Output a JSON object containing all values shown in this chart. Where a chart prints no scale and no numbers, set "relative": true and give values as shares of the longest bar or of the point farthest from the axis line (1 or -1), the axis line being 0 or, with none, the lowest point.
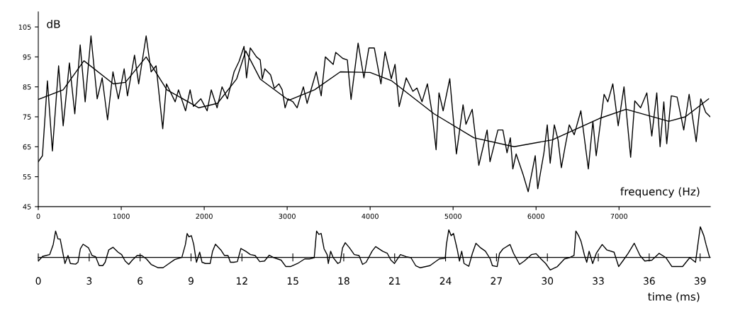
{
  "chart_data": [
    {
      "type": "line",
      "xlabel": "frequency (Hz)",
      "ylabel": "dB",
      "xlim": [
        0,
        8100
      ],
      "xticks": [
        0,
        1000,
        2000,
        3000,
        4000,
        5000,
        6000,
        7000
      ],
      "ylim": [
        45,
        110
      ],
      "yticks": [
        45,
        55,
        65,
        75,
        85,
        95,
        105
      ],
      "series": [
        {
          "color": "#000000",
          "x": [
            0,
            50,
            110,
            170,
            245,
            300,
            375,
            440,
            505,
            565,
            635,
            710,
            770,
            835,
            900,
            965,
            1035,
            1075,
            1160,
            1210,
            1300,
            1360,
            1420,
            1500,
            1545,
            1650,
            1690,
            1775,
            1830,
            1870,
            1960,
            2035,
            2085,
            2155,
            2215,
            2280,
            2360,
            2420,
            2480,
            2510,
            2555,
            2630,
            2675,
            2700,
            2730,
            2800,
            2845,
            2900,
            2940,
            2975,
            3010,
            3070,
            3120,
            3195,
            3240,
            3350,
            3410,
            3460,
            3555,
            3585,
            3670,
            3725,
            3770,
            3855,
            3925,
            3985,
            4050,
            4130,
            4180,
            4255,
            4300,
            4350,
            4435,
            4515,
            4565,
            4625,
            4690,
            4745,
            4795,
            4830,
            4880,
            4960,
            5040,
            5120,
            5155,
            5230,
            5310,
            5410,
            5445,
            5540,
            5600,
            5650,
            5690,
            5720,
            5760,
            5845,
            5905,
            5990,
            6020,
            6095,
            6135,
            6170,
            6220,
            6265,
            6305,
            6350,
            6400,
            6460,
            6540,
            6630,
            6685,
            6725,
            6820,
            6865,
            6925,
            6990,
            7060,
            7140,
            7190,
            7260,
            7335,
            7395,
            7455,
            7495,
            7540,
            7575,
            7630,
            7700,
            7780,
            7845,
            7930,
            7985,
            8045,
            8100
          ],
          "values": [
            60,
            62,
            87,
            63.6,
            92,
            72,
            93,
            76,
            99,
            80,
            102,
            81,
            88,
            74,
            90,
            81,
            91,
            82,
            95.6,
            86,
            102,
            90,
            92,
            71,
            86,
            80,
            84,
            77,
            84,
            78.5,
            81,
            77,
            84,
            78,
            85,
            81,
            90,
            93.5,
            98.5,
            88,
            98,
            95,
            94,
            87.6,
            91,
            89,
            84.5,
            86,
            84,
            78,
            81,
            80,
            78,
            85,
            79.5,
            90,
            82,
            95,
            92.5,
            96.5,
            94.5,
            94,
            80.8,
            99.6,
            88,
            98,
            98,
            86,
            96.7,
            87.7,
            92.5,
            78.4,
            88,
            83.5,
            84.6,
            80,
            86,
            76.6,
            64,
            83,
            77,
            87.7,
            62.6,
            79,
            72.5,
            77.5,
            58.8,
            70.6,
            60,
            70.6,
            70.6,
            63,
            68,
            57.6,
            62.6,
            55.6,
            50,
            62,
            51,
            63,
            72.3,
            59.5,
            72.3,
            67.3,
            58,
            65,
            72.3,
            69,
            77,
            57.6,
            73.5,
            62,
            82.5,
            80,
            86,
            72,
            85,
            61.5,
            80.3,
            78,
            83,
            68.6,
            83,
            65,
            80,
            66,
            82,
            81.6,
            70.6,
            82.5,
            66.7,
            81,
            76.5,
            75
          ]
        },
        {
          "color": "#000000",
          "x": [
            0,
            300,
            550,
            905,
            1050,
            1300,
            1550,
            1935,
            2160,
            2390,
            2500,
            2675,
            3020,
            3330,
            3640,
            4000,
            4260,
            4770,
            5250,
            5735,
            6195,
            6760,
            7085,
            7600,
            7800,
            8080
          ],
          "values": [
            80.8,
            84,
            93.7,
            86,
            86.5,
            95,
            84,
            78,
            79.5,
            87.6,
            97,
            87.6,
            80.5,
            84,
            90,
            89.8,
            87,
            76,
            68,
            65,
            67.3,
            74.4,
            77.5,
            73.5,
            75,
            81
          ]
        }
      ]
    },
    {
      "type": "line",
      "xlabel": "time (ms)",
      "relative": true,
      "tick_labels": "x",
      "xlim": [
        0,
        39.6
      ],
      "xticks": [
        0,
        3,
        6,
        9,
        12,
        15,
        18,
        21,
        24,
        27,
        30,
        33,
        36,
        39
      ],
      "series": [
        {
          "color": "#000000",
          "x": [
            0,
            0.25,
            0.67,
            0.88,
            1.02,
            1.16,
            1.29,
            1.43,
            1.57,
            1.75,
            1.89,
            2.2,
            2.34,
            2.48,
            2.64,
            2.96,
            3.17,
            3.38,
            3.59,
            3.8,
            3.94,
            4.15,
            4.4,
            4.7,
            4.91,
            5.12,
            5.33,
            5.54,
            5.82,
            6.1,
            6.37,
            6.65,
            7.07,
            7.35,
            7.63,
            8.04,
            8.46,
            8.67,
            8.77,
            8.88,
            9.02,
            9.16,
            9.32,
            9.51,
            9.65,
            9.85,
            10.13,
            10.27,
            10.44,
            10.76,
            10.97,
            11.18,
            11.32,
            11.52,
            11.73,
            11.94,
            12.22,
            12.5,
            12.78,
            13.05,
            13.33,
            13.61,
            13.89,
            14.31,
            14.59,
            14.86,
            15.28,
            15.7,
            15.98,
            16.26,
            16.4,
            16.53,
            16.67,
            16.84,
            17.02,
            17.09,
            17.23,
            17.37,
            17.65,
            17.79,
            17.93,
            18.09,
            18.34,
            18.62,
            18.9,
            19.11,
            19.32,
            19.67,
            19.88,
            20.29,
            20.57,
            20.78,
            20.99,
            21.34,
            21.68,
            21.96,
            22.24,
            22.51,
            23.08,
            23.63,
            23.98,
            24.05,
            24.19,
            24.33,
            24.47,
            24.68,
            24.82,
            24.95,
            25.09,
            25.37,
            25.58,
            25.79,
            26.07,
            26.35,
            26.63,
            26.76,
            27.04,
            27.18,
            27.39,
            27.8,
            28.01,
            28.36,
            28.64,
            29.06,
            29.34,
            29.62,
            29.9,
            30.17,
            30.59,
            31.01,
            31.29,
            31.57,
            31.68,
            31.84,
            31.98,
            32.19,
            32.32,
            32.46,
            32.67,
            32.88,
            33.23,
            33.51,
            33.93,
            34.2,
            34.48,
            34.76,
            35.12,
            35.46,
            35.74,
            36.16,
            36.58,
            36.99,
            37.34,
            37.97,
            38.39,
            38.73,
            38.87,
            39.01,
            39.22,
            39.35,
            39.56
          ],
          "values": [
            -0.12,
            0.03,
            0.09,
            0.42,
            0.86,
            0.6,
            0.6,
            0.2,
            -0.2,
            0.06,
            -0.2,
            -0.22,
            -0.16,
            0.28,
            0.43,
            0.31,
            0.06,
            0.02,
            -0.27,
            -0.27,
            -0.16,
            0.24,
            0.33,
            0.17,
            0.09,
            -0.12,
            -0.23,
            -0.09,
            0.06,
            0.06,
            -0.05,
            -0.23,
            -0.34,
            -0.34,
            -0.23,
            -0.07,
            0,
            0.42,
            0.78,
            0.67,
            0.71,
            0.42,
            -0.16,
            0.17,
            -0.16,
            -0.2,
            -0.2,
            0.2,
            0.43,
            0.24,
            0.06,
            0.06,
            -0.16,
            -0.16,
            -0.14,
            0.29,
            0.2,
            0.09,
            0.06,
            -0.14,
            -0.12,
            0.07,
            -0.01,
            -0.09,
            -0.3,
            -0.3,
            -0.2,
            -0.05,
            -0.05,
            -0.01,
            0.86,
            0.75,
            0.78,
            0.28,
            0.09,
            -0.2,
            0.2,
            0,
            -0.2,
            -0.16,
            0.31,
            0.48,
            0.31,
            0.09,
            0.06,
            -0.23,
            -0.16,
            0.2,
            0.35,
            0.2,
            0.13,
            -0.09,
            -0.2,
            0.09,
            0.02,
            -0.01,
            -0.27,
            -0.34,
            -0.27,
            -0.05,
            -0.03,
            0.42,
            0.9,
            0.71,
            0.78,
            0.28,
            -0.12,
            0.2,
            -0.2,
            -0.29,
            0.13,
            0.46,
            0.31,
            0.2,
            -0.05,
            -0.27,
            -0.3,
            0.13,
            0.28,
            0.42,
            0.13,
            -0.23,
            -0.12,
            0.09,
            0.12,
            -0.05,
            -0.2,
            -0.41,
            -0.3,
            -0.05,
            -0.01,
            0.06,
            0.86,
            0.71,
            0.53,
            0.06,
            -0.16,
            0.2,
            -0.2,
            0.13,
            0.42,
            0.24,
            0.17,
            -0.3,
            -0.09,
            0.13,
            0.46,
            0.06,
            -0.12,
            -0.09,
            0.13,
            -0.01,
            -0.3,
            -0.3,
            -0.01,
            -0.16,
            0.42,
            1.0,
            0.71,
            0.42,
            0
          ]
        }
      ]
    }
  ]
}
